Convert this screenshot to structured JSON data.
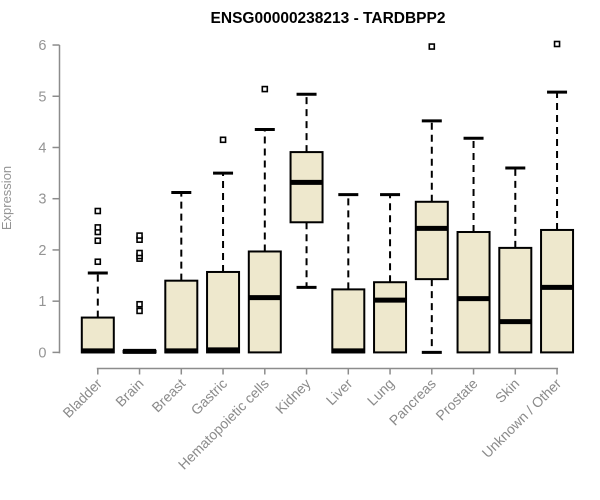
{
  "title": "ENSG00000238213 - TARDBPP2",
  "colors": {
    "background": "#ffffff",
    "box_fill": "#EEE8CD",
    "box_stroke": "#000000",
    "median": "#000000",
    "whisker": "#000000",
    "outlier_fill": "#ffffff",
    "outlier_stroke": "#000000",
    "axis_line": "#8c8c8c",
    "tick_text": "#949494",
    "title_text": "#000000"
  },
  "chart_data": {
    "type": "boxplot",
    "title": "ENSG00000238213 - TARDBPP2",
    "xlabel": "",
    "ylabel": "Expression",
    "ylim": [
      0,
      6
    ],
    "yticks": [
      0,
      1,
      2,
      3,
      4,
      5,
      6
    ],
    "grid": "off",
    "whisker_style": "dashed",
    "categories": [
      "Bladder",
      "Brain",
      "Breast",
      "Gastric",
      "Hematopoietic cells",
      "Kidney",
      "Liver",
      "Lung",
      "Pancreas",
      "Prostate",
      "Skin",
      "Unknown / Other"
    ],
    "boxes": [
      {
        "category": "Bladder",
        "low": 0,
        "q1": 0,
        "median": 0.03,
        "q3": 0.68,
        "high": 1.55,
        "outliers": [
          1.77,
          2.18,
          2.35,
          2.44,
          2.76
        ]
      },
      {
        "category": "Brain",
        "low": 0,
        "q1": 0,
        "median": 0.02,
        "q3": 0.03,
        "high": 0.03,
        "outliers": [
          0.81,
          0.94,
          1.83,
          1.88,
          1.94,
          2.2,
          2.28
        ]
      },
      {
        "category": "Breast",
        "low": 0,
        "q1": 0,
        "median": 0.03,
        "q3": 1.4,
        "high": 3.12,
        "outliers": []
      },
      {
        "category": "Gastric",
        "low": 0,
        "q1": 0,
        "median": 0.05,
        "q3": 1.57,
        "high": 3.5,
        "outliers": [
          4.15
        ]
      },
      {
        "category": "Hematopoietic cells",
        "low": 0,
        "q1": 0,
        "median": 1.07,
        "q3": 1.97,
        "high": 4.35,
        "outliers": [
          5.14
        ]
      },
      {
        "category": "Kidney",
        "low": 1.27,
        "q1": 2.54,
        "median": 3.32,
        "q3": 3.91,
        "high": 5.04,
        "outliers": []
      },
      {
        "category": "Liver",
        "low": 0,
        "q1": 0,
        "median": 0.03,
        "q3": 1.23,
        "high": 3.08,
        "outliers": []
      },
      {
        "category": "Lung",
        "low": 0,
        "q1": 0,
        "median": 1.02,
        "q3": 1.37,
        "high": 3.08,
        "outliers": []
      },
      {
        "category": "Pancreas",
        "low": 0,
        "q1": 1.43,
        "median": 2.42,
        "q3": 2.94,
        "high": 4.52,
        "outliers": [
          5.97
        ]
      },
      {
        "category": "Prostate",
        "low": 0,
        "q1": 0,
        "median": 1.05,
        "q3": 2.35,
        "high": 4.18,
        "outliers": []
      },
      {
        "category": "Skin",
        "low": 0,
        "q1": 0,
        "median": 0.6,
        "q3": 2.04,
        "high": 3.6,
        "outliers": []
      },
      {
        "category": "Unknown / Other",
        "low": 0,
        "q1": 0,
        "median": 1.27,
        "q3": 2.39,
        "high": 5.08,
        "outliers": [
          6.02
        ]
      }
    ]
  }
}
